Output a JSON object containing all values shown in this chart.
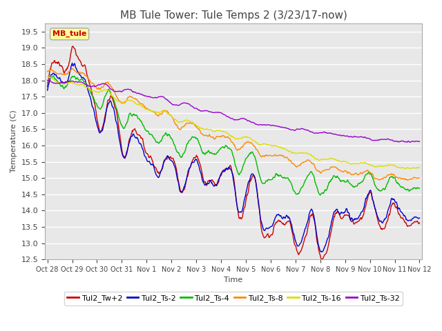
{
  "title": "MB Tule Tower: Tule Temps 2 (3/23/17-now)",
  "xlabel": "Time",
  "ylabel": "Temperature (C)",
  "ylim": [
    12.5,
    19.75
  ],
  "yticks": [
    12.5,
    13.0,
    13.5,
    14.0,
    14.5,
    15.0,
    15.5,
    16.0,
    16.5,
    17.0,
    17.5,
    18.0,
    18.5,
    19.0,
    19.5
  ],
  "xtick_labels": [
    "Oct 28",
    "Oct 29",
    "Oct 30",
    "Oct 31",
    "Nov 1",
    "Nov 2",
    "Nov 3",
    "Nov 4",
    "Nov 5",
    "Nov 6",
    "Nov 7",
    "Nov 8",
    "Nov 9",
    "Nov 10",
    "Nov 11",
    "Nov 12"
  ],
  "series_colors": [
    "#cc0000",
    "#0000cc",
    "#00bb00",
    "#ff8800",
    "#dddd00",
    "#9900cc"
  ],
  "series_labels": [
    "Tul2_Tw+2",
    "Tul2_Ts-2",
    "Tul2_Ts-4",
    "Tul2_Ts-8",
    "Tul2_Ts-16",
    "Tul2_Ts-32"
  ],
  "inset_label": "MB_tule",
  "inset_color": "#cc0000",
  "inset_bg": "#ffff99",
  "background_color": "#e8e8e8",
  "grid_color": "#ffffff",
  "title_fontsize": 11,
  "axis_fontsize": 8,
  "legend_fontsize": 8
}
